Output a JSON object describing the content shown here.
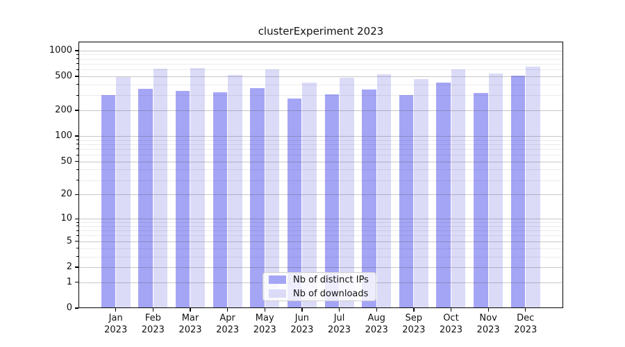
{
  "title": "clusterExperiment 2023",
  "chart_data": {
    "type": "bar",
    "title": "clusterExperiment 2023",
    "categories": [
      "Jan 2023",
      "Feb 2023",
      "Mar 2023",
      "Apr 2023",
      "May 2023",
      "Jun 2023",
      "Jul 2023",
      "Aug 2023",
      "Sep 2023",
      "Oct 2023",
      "Nov 2023",
      "Dec 2023"
    ],
    "series": [
      {
        "name": "Nb of distinct IPs",
        "color": "#a5a5f6",
        "values": [
          300,
          360,
          340,
          325,
          365,
          275,
          310,
          350,
          305,
          420,
          320,
          510
        ]
      },
      {
        "name": "Nb of downloads",
        "color": "#dbdbf8",
        "values": [
          495,
          610,
          625,
          515,
          605,
          420,
          480,
          525,
          460,
          600,
          540,
          655
        ]
      }
    ],
    "xlabel": "",
    "ylabel": "",
    "yscale": "log1p",
    "ylim": [
      0,
      1270
    ],
    "y_major_ticks": [
      0,
      1,
      2,
      5,
      10,
      20,
      50,
      100,
      200,
      500,
      1000
    ],
    "y_minor_gridlines": [
      3,
      4,
      6,
      7,
      8,
      9,
      30,
      40,
      60,
      70,
      80,
      90,
      300,
      400,
      600,
      700,
      800,
      900
    ],
    "grid": "horizontal major and minor",
    "legend_position": "lower center inside plot"
  },
  "colors": {
    "background": "#ffffff",
    "axis": "#000000",
    "major_grid": "rgba(70,70,70,0.30)",
    "minor_grid": "rgba(0,0,0,0.08)",
    "legend_bg": "rgba(255,255,255,0.8)",
    "legend_border": "#cccccc",
    "text": "#111111"
  }
}
